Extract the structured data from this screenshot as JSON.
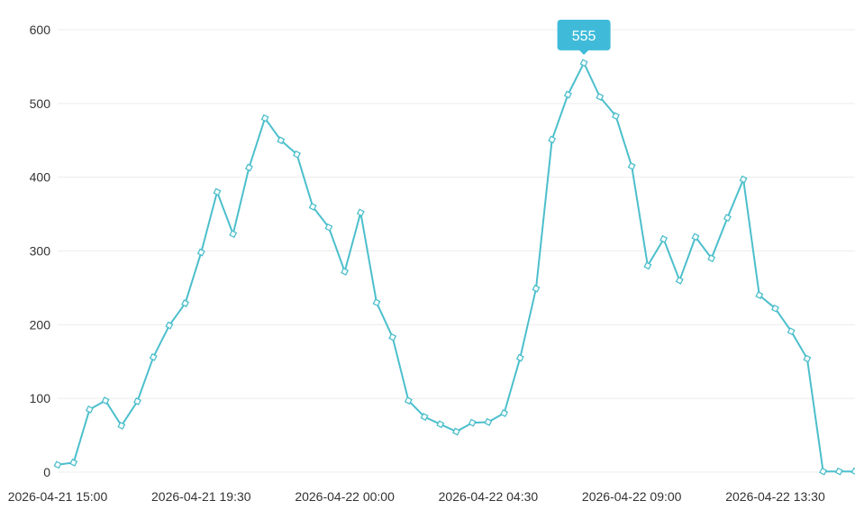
{
  "chart_data": {
    "type": "line",
    "title": "",
    "xlabel": "",
    "ylabel": "",
    "ylim": [
      0,
      600
    ],
    "y_ticks": [
      0,
      100,
      200,
      300,
      400,
      500,
      600
    ],
    "grid": "horizontal",
    "line_color": "#4cbfcc",
    "marker": "diamond",
    "x_tick_labels": [
      "2026-04-21 15:00",
      "2026-04-21 19:30",
      "2026-04-22 00:00",
      "2026-04-22 04:30",
      "2026-04-22 09:00",
      "2026-04-22 13:30"
    ],
    "x": [
      "2026-04-21 15:00",
      "2026-04-21 15:30",
      "2026-04-21 16:00",
      "2026-04-21 16:30",
      "2026-04-21 17:00",
      "2026-04-21 17:30",
      "2026-04-21 18:00",
      "2026-04-21 18:30",
      "2026-04-21 19:00",
      "2026-04-21 19:30",
      "2026-04-21 20:00",
      "2026-04-21 20:30",
      "2026-04-21 21:00",
      "2026-04-21 21:30",
      "2026-04-21 22:00",
      "2026-04-21 22:30",
      "2026-04-21 23:00",
      "2026-04-21 23:30",
      "2026-04-22 00:00",
      "2026-04-22 00:30",
      "2026-04-22 01:00",
      "2026-04-22 01:30",
      "2026-04-22 02:00",
      "2026-04-22 02:30",
      "2026-04-22 03:00",
      "2026-04-22 03:30",
      "2026-04-22 04:00",
      "2026-04-22 04:30",
      "2026-04-22 05:00",
      "2026-04-22 05:30",
      "2026-04-22 06:00",
      "2026-04-22 06:30",
      "2026-04-22 07:00",
      "2026-04-22 07:30",
      "2026-04-22 08:00",
      "2026-04-22 08:30",
      "2026-04-22 09:00",
      "2026-04-22 09:30",
      "2026-04-22 10:00",
      "2026-04-22 10:30",
      "2026-04-22 11:00",
      "2026-04-22 11:30",
      "2026-04-22 12:00",
      "2026-04-22 12:30",
      "2026-04-22 13:00",
      "2026-04-22 13:30",
      "2026-04-22 14:00",
      "2026-04-22 14:30",
      "2026-04-22 15:00",
      "2026-04-22 15:30",
      "2026-04-22 16:00"
    ],
    "series": [
      {
        "values": [
          10,
          13,
          85,
          97,
          63,
          96,
          156,
          199,
          229,
          298,
          380,
          323,
          413,
          480,
          450,
          431,
          360,
          332,
          272,
          352,
          230,
          183,
          97,
          75,
          65,
          55,
          67,
          68,
          80,
          155,
          249,
          451,
          512,
          555,
          509,
          483,
          415,
          280,
          316,
          260,
          319,
          290,
          345,
          397,
          240,
          222,
          191,
          154,
          1,
          1,
          1
        ]
      }
    ],
    "tooltip": {
      "value": "555",
      "point_index": 33,
      "color": "#3fbbd9"
    }
  }
}
